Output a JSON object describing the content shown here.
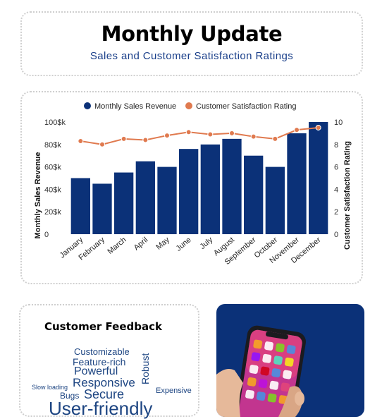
{
  "header": {
    "title": "Monthly Update",
    "subtitle": "Sales and Customer Satisfaction Ratings"
  },
  "chart_data": {
    "type": "bar",
    "categories": [
      "January",
      "February",
      "March",
      "April",
      "May",
      "June",
      "July",
      "August",
      "September",
      "October",
      "November",
      "December"
    ],
    "series": [
      {
        "name": "Monthly Sales Revenue",
        "type": "bar",
        "axis": "left",
        "color": "#0b3178",
        "values": [
          50,
          45,
          55,
          65,
          60,
          76,
          80,
          85,
          70,
          60,
          90,
          100
        ]
      },
      {
        "name": "Customer Satisfaction Rating",
        "type": "line",
        "axis": "right",
        "color": "#e07a4f",
        "values": [
          8.3,
          8.0,
          8.5,
          8.4,
          8.8,
          9.1,
          8.9,
          9.0,
          8.7,
          8.5,
          9.3,
          9.5
        ]
      }
    ],
    "ylabel": "Monthly Sales Revenue",
    "y2label": "Customer Satisfaction Rating",
    "ylim": [
      0,
      100
    ],
    "y2lim": [
      0,
      10
    ],
    "yticks": [
      0,
      20,
      40,
      60,
      80,
      100
    ],
    "yticklabels": [
      "0",
      "20$k",
      "40$k",
      "60$k",
      "80$k",
      "100$k"
    ],
    "y2ticks": [
      0,
      2,
      4,
      6,
      8,
      10
    ],
    "y2ticklabels": [
      "0",
      "2",
      "4",
      "6",
      "8",
      "10"
    ],
    "legend_position": "top-center",
    "grid": false
  },
  "feedback": {
    "title": "Customer Feedback",
    "words": [
      {
        "text": "Customizable"
      },
      {
        "text": "Feature-rich"
      },
      {
        "text": "Powerful"
      },
      {
        "text": "Responsive"
      },
      {
        "text": "Robust"
      },
      {
        "text": "Slow loading"
      },
      {
        "text": "Bugs"
      },
      {
        "text": "Secure"
      },
      {
        "text": "Expensive"
      },
      {
        "text": "User-friendly"
      }
    ]
  },
  "phone_card": {
    "background": "#0b3178",
    "image": "hand-holding-smartphone"
  }
}
